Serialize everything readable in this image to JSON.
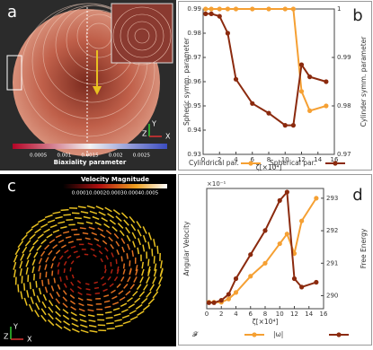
{
  "panels": {
    "a": {
      "letter": "a",
      "colorbar": {
        "label": "Biaxiality parameter",
        "ticks": [
          0.0005,
          0.001,
          0.0015,
          0.002,
          0.0025
        ]
      },
      "axes": [
        "Y",
        "Z",
        "X"
      ]
    },
    "c": {
      "letter": "c",
      "colorbar": {
        "label": "Velocity Magnitude",
        "ticks": [
          0.0001,
          0.0002,
          0.0003,
          0.0004,
          0.0005
        ]
      },
      "axes": [
        "Y",
        "Z",
        "X"
      ]
    }
  },
  "chart_data": [
    {
      "type": "line",
      "letter": "b",
      "xlabel": "ζ[×10⁴]",
      "ylabel": "Spheric symm. parameter",
      "y2label": "Cylinder symm. parameter",
      "x": [
        0.3,
        1,
        2,
        3,
        4,
        6,
        8,
        10,
        11,
        12,
        13,
        15
      ],
      "xlim": [
        0,
        16
      ],
      "xticks": [
        0,
        2,
        4,
        6,
        8,
        10,
        12,
        14,
        16
      ],
      "ylim": [
        0.93,
        0.99
      ],
      "yticks": [
        0.93,
        0.94,
        0.95,
        0.96,
        0.97,
        0.98,
        0.99
      ],
      "y2lim": [
        0.97,
        1
      ],
      "y2ticks": [
        0.97,
        0.98,
        0.99,
        1
      ],
      "series": [
        {
          "name": "Cylindrical par.",
          "color": "#f5a033",
          "axis": "y2",
          "values": [
            1,
            1,
            1,
            1,
            1,
            1,
            1,
            1,
            1,
            0.983,
            0.979,
            0.98
          ]
        },
        {
          "name": "Spherical par.",
          "color": "#8b2a0e",
          "axis": "y",
          "values": [
            0.988,
            0.988,
            0.987,
            0.98,
            0.961,
            0.951,
            0.947,
            0.942,
            0.942,
            0.967,
            0.962,
            0.96
          ]
        }
      ]
    },
    {
      "type": "line",
      "letter": "d",
      "xlabel": "ζ[×10⁴]",
      "ylabel": "Angular Velocity",
      "yscale_note": "×10⁻¹",
      "y2label": "Free Energy",
      "x": [
        0.3,
        1,
        2,
        3,
        4,
        6,
        8,
        10,
        11,
        12,
        13,
        15
      ],
      "xlim": [
        0,
        16
      ],
      "xticks": [
        0,
        2,
        4,
        6,
        8,
        10,
        12,
        14,
        16
      ],
      "ylim": [
        0,
        1
      ],
      "y2lim": [
        289.6,
        293.3
      ],
      "y2ticks": [
        290,
        291,
        292,
        293
      ],
      "series": [
        {
          "name": "𝓕",
          "color": "#f5a033",
          "axis": "y2",
          "values": [
            289.8,
            289.8,
            289.8,
            289.9,
            290.1,
            290.6,
            291.0,
            291.6,
            291.9,
            291.3,
            292.3,
            293.0
          ]
        },
        {
          "name": "|ω|",
          "color": "#8b2a0e",
          "axis": "y",
          "values": [
            0.05,
            0.05,
            0.07,
            0.12,
            0.25,
            0.45,
            0.65,
            0.9,
            0.97,
            0.25,
            0.18,
            0.22
          ]
        }
      ]
    }
  ]
}
